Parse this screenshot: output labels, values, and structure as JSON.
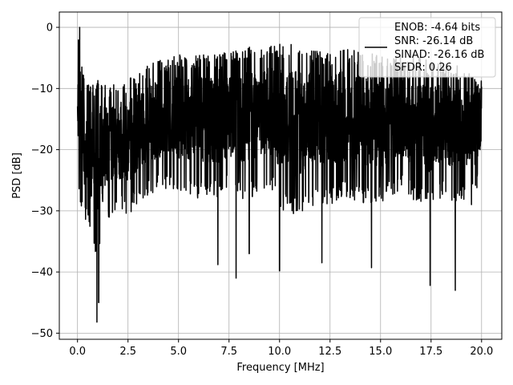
{
  "chart_data": {
    "type": "line",
    "title": "",
    "xlabel": "Frequency [MHz]",
    "ylabel": "PSD [dB]",
    "xlim": [
      -0.9,
      21.0
    ],
    "ylim": [
      -51.0,
      2.5
    ],
    "xticks": [
      0.0,
      2.5,
      5.0,
      7.5,
      10.0,
      12.5,
      15.0,
      17.5,
      20.0
    ],
    "xtick_labels": [
      "0.0",
      "2.5",
      "5.0",
      "7.5",
      "10.0",
      "12.5",
      "15.0",
      "17.5",
      "20.0"
    ],
    "yticks": [
      0,
      -10,
      -20,
      -30,
      -40,
      -50
    ],
    "ytick_labels": [
      "0",
      "−10",
      "−20",
      "−30",
      "−40",
      "−50"
    ],
    "grid": true,
    "legend_position": "top-right",
    "legend_lines": [
      "ENOB: -4.64 bits",
      "SNR: -26.14 dB",
      "SINAD: -26.16 dB",
      "SFDR: 0.26"
    ],
    "series": [
      {
        "color": "#000000",
        "x_start": 0.0,
        "x_end": 20.0,
        "envelope_x": [
          0.0,
          0.05,
          0.2,
          0.5,
          0.8,
          1.0,
          1.5,
          2.0,
          2.5,
          3.0,
          3.5,
          4.0,
          5.0,
          6.0,
          7.0,
          7.5,
          8.0,
          8.5,
          9.0,
          9.5,
          10.0,
          11.0,
          12.0,
          12.5,
          13.0,
          14.0,
          15.0,
          16.0,
          17.0,
          17.5,
          18.0,
          19.0,
          19.5,
          20.0
        ],
        "envelope_upper": [
          -12,
          0.0,
          -5.5,
          -9,
          -9.5,
          -8.5,
          -9.5,
          -9,
          -8.5,
          -7.5,
          -6,
          -5.5,
          -4.5,
          -4.5,
          -4.5,
          -3.5,
          -4,
          -3,
          -3.5,
          -3,
          -2.5,
          -3,
          -4,
          -4,
          -3,
          -4,
          -4.5,
          -4.5,
          -5,
          -5.5,
          -5.5,
          -6.5,
          -7,
          -8
        ],
        "envelope_lower": [
          -15,
          -27,
          -31,
          -33,
          -36,
          -38,
          -32,
          -30,
          -31,
          -29,
          -28,
          -27,
          -27,
          -28,
          -28,
          -27,
          -28,
          -28,
          -27,
          -26,
          -30,
          -31,
          -29,
          -29,
          -28,
          -29,
          -29,
          -27,
          -29,
          -30,
          -28,
          -29,
          -29,
          -25
        ],
        "notable_dips": [
          [
            0.96,
            -48.2
          ],
          [
            7.85,
            -41.0
          ],
          [
            10.0,
            -39.8
          ],
          [
            17.45,
            -42.2
          ],
          [
            18.7,
            -43.0
          ],
          [
            8.5,
            -37.0
          ],
          [
            14.55,
            -39.3
          ],
          [
            12.1,
            -38.5
          ],
          [
            6.95,
            -38.8
          ],
          [
            1.05,
            -45.0
          ]
        ]
      }
    ]
  }
}
